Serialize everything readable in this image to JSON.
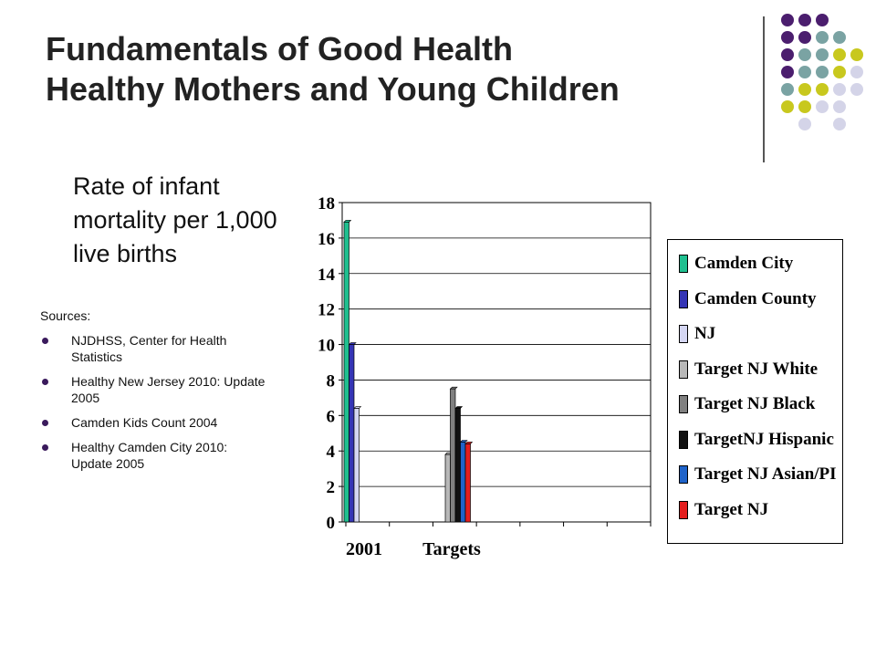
{
  "slide": {
    "title_line1": "Fundamentals of Good Health",
    "title_line2": "Healthy Mothers and Young Children",
    "subtitle": "Rate of infant mortality per 1,000 live births"
  },
  "sources": {
    "heading": "Sources:",
    "items": [
      "NJDHSS, Center for Health Statistics",
      "Healthy New Jersey 2010: Update 2005",
      "Camden Kids Count 2004",
      "Healthy Camden City 2010: Update 2005"
    ]
  },
  "decoration": {
    "dot_colors": {
      "purple": "#4b1e6e",
      "teal": "#7aa3a3",
      "olive": "#c8c81e",
      "lavender": "#d4d4e8"
    }
  },
  "chart_data": {
    "type": "bar",
    "categories": [
      "2001",
      "Targets"
    ],
    "ylim": [
      0,
      18
    ],
    "yticks": [
      "0",
      "2",
      "4",
      "6",
      "8",
      "10",
      "12",
      "14",
      "16",
      "18"
    ],
    "grid": true,
    "legend_position": "right",
    "series": [
      {
        "name": "Camden City",
        "color": "#1fbf8f",
        "values": [
          16.9,
          null
        ]
      },
      {
        "name": "Camden County",
        "color": "#3535b5",
        "values": [
          10.0,
          null
        ]
      },
      {
        "name": "NJ",
        "color": "#d4d6f2",
        "values": [
          6.4,
          null
        ]
      },
      {
        "name": "Target NJ White",
        "color": "#b8b8b8",
        "values": [
          null,
          3.8
        ]
      },
      {
        "name": "Target NJ Black",
        "color": "#808080",
        "values": [
          null,
          7.5
        ]
      },
      {
        "name": "TargetNJ Hispanic",
        "color": "#111111",
        "values": [
          null,
          6.4
        ]
      },
      {
        "name": "Target NJ Asian/PI",
        "color": "#1f63c9",
        "values": [
          null,
          4.5
        ]
      },
      {
        "name": "Target NJ",
        "color": "#e41e1e",
        "values": [
          null,
          4.4
        ]
      }
    ]
  }
}
